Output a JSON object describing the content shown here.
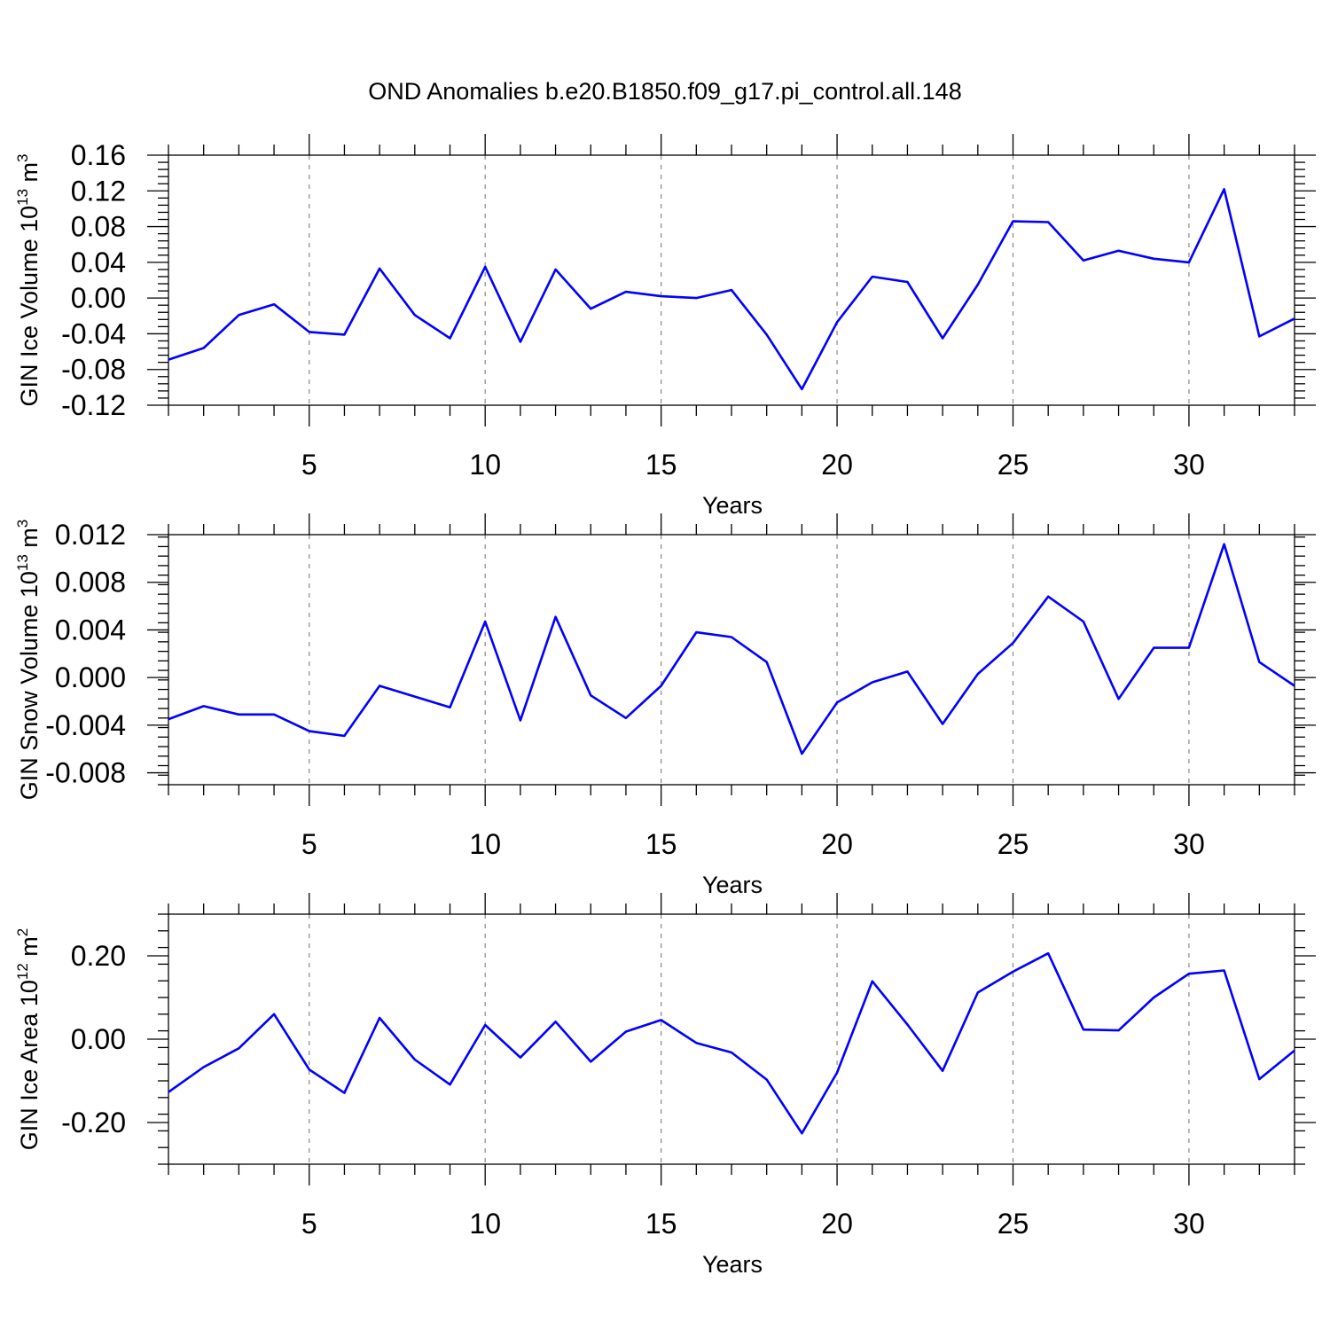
{
  "title": "OND Anomalies b.e20.B1850.f09_g17.pi_control.all.148",
  "line_color": "#0000ff",
  "chart_data": [
    {
      "type": "line",
      "xlabel": "Years",
      "ylabel_parts": [
        "GIN Ice Volume 10",
        "13",
        " m",
        "3"
      ],
      "xlim": [
        1,
        33
      ],
      "ylim": [
        -0.12,
        0.16
      ],
      "xticks": [
        5,
        10,
        15,
        20,
        25,
        30
      ],
      "yticks": [
        "-0.12",
        "-0.08",
        "-0.04",
        "0.00",
        "0.04",
        "0.08",
        "0.12",
        "0.16"
      ],
      "grid": "vertical dashed at major x ticks",
      "x": [
        1,
        2,
        3,
        4,
        5,
        6,
        7,
        8,
        9,
        10,
        11,
        12,
        13,
        14,
        15,
        16,
        17,
        18,
        19,
        20,
        21,
        22,
        23,
        24,
        25,
        26,
        27,
        28,
        29,
        30,
        31,
        32,
        33
      ],
      "values": [
        -0.069,
        -0.056,
        -0.019,
        -0.007,
        -0.038,
        -0.041,
        0.033,
        -0.019,
        -0.045,
        0.035,
        -0.049,
        0.032,
        -0.012,
        0.007,
        0.002,
        0.0,
        0.009,
        -0.041,
        -0.102,
        -0.027,
        0.024,
        0.018,
        -0.045,
        0.015,
        0.086,
        0.085,
        0.042,
        0.053,
        0.044,
        0.04,
        0.122,
        -0.043,
        -0.023
      ]
    },
    {
      "type": "line",
      "xlabel": "Years",
      "ylabel_parts": [
        "GIN Snow Volume 10",
        "13",
        " m",
        "3"
      ],
      "xlim": [
        1,
        33
      ],
      "ylim": [
        -0.009,
        0.012
      ],
      "xticks": [
        5,
        10,
        15,
        20,
        25,
        30
      ],
      "yticks": [
        "-0.008",
        "-0.004",
        "0.000",
        "0.004",
        "0.008",
        "0.012"
      ],
      "grid": "vertical dashed at major x ticks",
      "x": [
        1,
        2,
        3,
        4,
        5,
        6,
        7,
        8,
        9,
        10,
        11,
        12,
        13,
        14,
        15,
        16,
        17,
        18,
        19,
        20,
        21,
        22,
        23,
        24,
        25,
        26,
        27,
        28,
        29,
        30,
        31,
        32,
        33
      ],
      "values": [
        -0.0035,
        -0.0024,
        -0.0031,
        -0.0031,
        -0.0045,
        -0.0049,
        -0.0007,
        -0.0016,
        -0.0025,
        0.0047,
        -0.0036,
        0.0051,
        -0.0015,
        -0.0034,
        -0.0007,
        0.0038,
        0.0034,
        0.0013,
        -0.0064,
        -0.0021,
        -0.0004,
        0.0005,
        -0.0039,
        0.0003,
        0.0029,
        0.0068,
        0.0047,
        -0.0018,
        0.0025,
        0.0025,
        0.0112,
        0.0013,
        -0.0007
      ]
    },
    {
      "type": "line",
      "xlabel": "Years",
      "ylabel_parts": [
        "GIN Ice Area 10",
        "12",
        " m",
        "2"
      ],
      "xlim": [
        1,
        33
      ],
      "ylim": [
        -0.3,
        0.3
      ],
      "xticks": [
        5,
        10,
        15,
        20,
        25,
        30
      ],
      "yticks": [
        "-0.20",
        "0.00",
        "0.20"
      ],
      "grid": "vertical dashed at major x ticks",
      "x": [
        1,
        2,
        3,
        4,
        5,
        6,
        7,
        8,
        9,
        10,
        11,
        12,
        13,
        14,
        15,
        16,
        17,
        18,
        19,
        20,
        21,
        22,
        23,
        24,
        25,
        26,
        27,
        28,
        29,
        30,
        31,
        32,
        33
      ],
      "values": [
        -0.127,
        -0.067,
        -0.022,
        0.06,
        -0.073,
        -0.129,
        0.051,
        -0.049,
        -0.109,
        0.034,
        -0.044,
        0.042,
        -0.054,
        0.018,
        0.046,
        -0.009,
        -0.032,
        -0.097,
        -0.226,
        -0.08,
        0.139,
        0.035,
        -0.076,
        0.112,
        0.162,
        0.206,
        0.023,
        0.021,
        0.1,
        0.157,
        0.165,
        -0.096,
        -0.027
      ]
    }
  ]
}
